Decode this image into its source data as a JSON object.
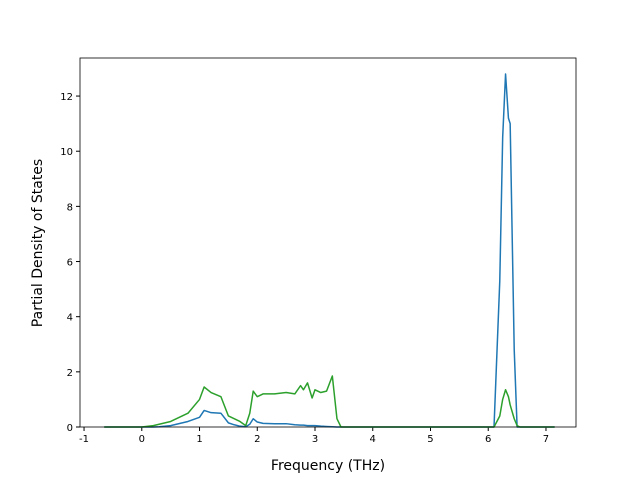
{
  "chart_data": {
    "type": "line",
    "xlabel": "Frequency (THz)",
    "ylabel": "Partial Density of States",
    "x": [
      -0.65,
      0,
      0.2,
      0.3,
      0.5,
      0.8,
      1.0,
      1.08,
      1.2,
      1.37,
      1.5,
      1.6,
      1.7,
      1.8,
      1.87,
      1.93,
      2.0,
      2.1,
      2.3,
      2.5,
      2.65,
      2.75,
      2.8,
      2.87,
      2.95,
      3.0,
      3.1,
      3.2,
      3.3,
      3.38,
      3.45,
      6.1,
      6.2,
      6.25,
      6.3,
      6.35,
      6.38,
      6.45,
      6.5,
      6.55,
      7.15
    ],
    "series": [
      {
        "color": "#1f77b4",
        "values": [
          0,
          0,
          0,
          0.01,
          0.05,
          0.2,
          0.35,
          0.6,
          0.52,
          0.5,
          0.15,
          0.08,
          0.03,
          0.01,
          0.1,
          0.3,
          0.18,
          0.13,
          0.12,
          0.12,
          0.08,
          0.07,
          0.07,
          0.05,
          0.05,
          0.05,
          0.03,
          0.02,
          0.01,
          0,
          0,
          0,
          5.3,
          10.5,
          12.8,
          11.2,
          11.0,
          2.8,
          0,
          0,
          0
        ]
      },
      {
        "color": "#2ca02c",
        "values": [
          0,
          0,
          0.05,
          0.1,
          0.2,
          0.5,
          1.0,
          1.45,
          1.25,
          1.1,
          0.4,
          0.3,
          0.2,
          0.05,
          0.5,
          1.3,
          1.1,
          1.2,
          1.2,
          1.25,
          1.2,
          1.5,
          1.35,
          1.6,
          1.05,
          1.35,
          1.25,
          1.3,
          1.85,
          0.3,
          0,
          0,
          0.4,
          1.0,
          1.35,
          1.1,
          0.8,
          0.3,
          0.05,
          0,
          0
        ]
      }
    ],
    "xlim": [
      -1.07,
      7.52
    ],
    "ylim": [
      0,
      13.38
    ],
    "xticks": [
      -1,
      0,
      1,
      2,
      3,
      4,
      5,
      6,
      7
    ],
    "yticks": [
      0,
      2,
      4,
      6,
      8,
      10,
      12
    ],
    "grid": false
  }
}
